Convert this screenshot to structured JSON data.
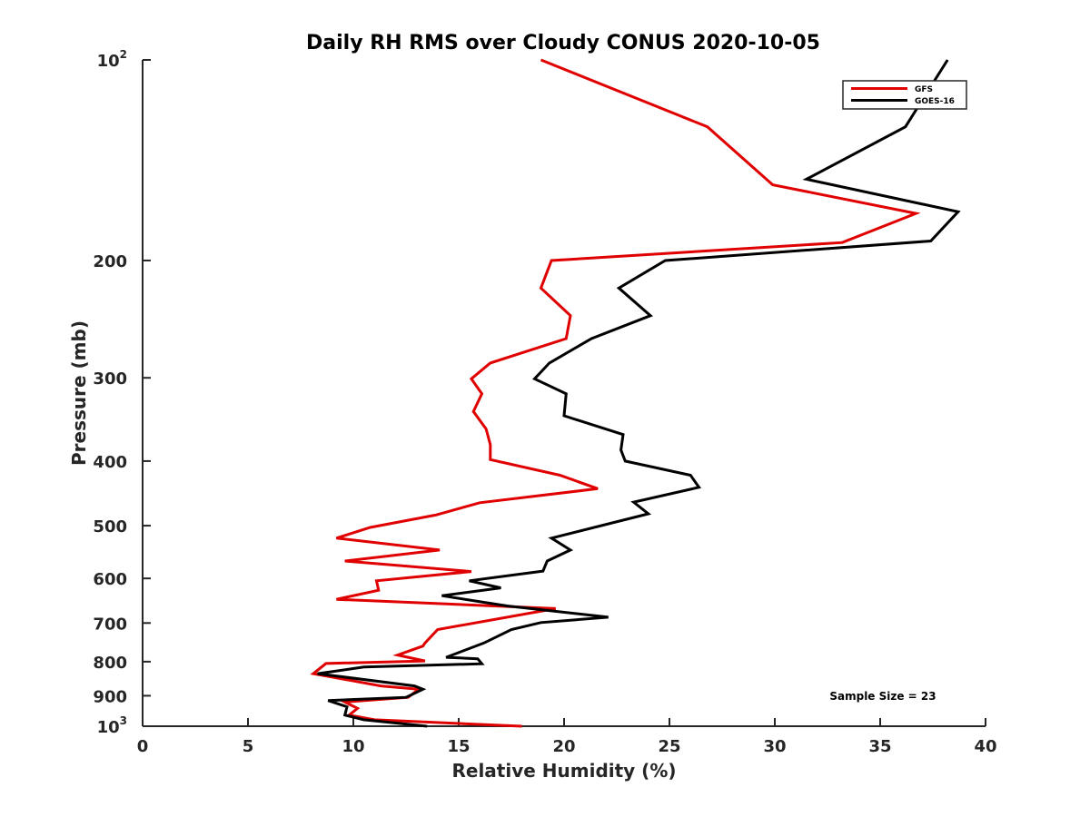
{
  "chart_data": {
    "type": "line",
    "title": "Daily RH RMS over Cloudy CONUS 2020-10-05",
    "xlabel": "Relative Humidity (%)",
    "ylabel": "Pressure (mb)",
    "xlim": [
      0,
      40
    ],
    "ylim": [
      100,
      1000
    ],
    "y_scale": "log",
    "y_reversed": true,
    "x_ticks": [
      0,
      5,
      10,
      15,
      20,
      25,
      30,
      35,
      40
    ],
    "y_ticks": [
      {
        "value": 100,
        "label": "10",
        "sup": "2"
      },
      {
        "value": 200,
        "label": "200",
        "sup": ""
      },
      {
        "value": 300,
        "label": "300",
        "sup": ""
      },
      {
        "value": 400,
        "label": "400",
        "sup": ""
      },
      {
        "value": 500,
        "label": "500",
        "sup": ""
      },
      {
        "value": 600,
        "label": "600",
        "sup": ""
      },
      {
        "value": 700,
        "label": "700",
        "sup": ""
      },
      {
        "value": 800,
        "label": "800",
        "sup": ""
      },
      {
        "value": 900,
        "label": "900",
        "sup": ""
      },
      {
        "value": 1000,
        "label": "10",
        "sup": "3"
      }
    ],
    "grid": false,
    "legend_position": "top-right",
    "annotation": "Sample Size = 23",
    "series": [
      {
        "name": "GFS",
        "color": "#e00000",
        "points": [
          [
            18.9,
            100
          ],
          [
            26.8,
            126
          ],
          [
            29.9,
            154
          ],
          [
            36.7,
            170
          ],
          [
            33.2,
            188
          ],
          [
            19.4,
            200
          ],
          [
            18.9,
            220
          ],
          [
            20.3,
            242
          ],
          [
            20.1,
            262
          ],
          [
            16.5,
            285
          ],
          [
            15.6,
            301
          ],
          [
            16.1,
            317
          ],
          [
            15.7,
            337
          ],
          [
            16.3,
            358
          ],
          [
            16.5,
            378
          ],
          [
            16.5,
            398
          ],
          [
            19.8,
            420
          ],
          [
            21.6,
            440
          ],
          [
            16.0,
            462
          ],
          [
            13.9,
            482
          ],
          [
            10.8,
            503
          ],
          [
            9.2,
            522
          ],
          [
            14.1,
            544
          ],
          [
            9.6,
            565
          ],
          [
            15.6,
            586
          ],
          [
            11.1,
            605
          ],
          [
            11.2,
            625
          ],
          [
            9.2,
            645
          ],
          [
            19.6,
            666
          ],
          [
            14.0,
            716
          ],
          [
            13.4,
            750
          ],
          [
            13.3,
            758
          ],
          [
            12.1,
            782
          ],
          [
            13.4,
            798
          ],
          [
            8.7,
            805
          ],
          [
            8.1,
            834
          ],
          [
            11.3,
            870
          ],
          [
            13.1,
            880
          ],
          [
            12.6,
            905
          ],
          [
            9.6,
            920
          ],
          [
            10.2,
            940
          ],
          [
            9.8,
            962
          ],
          [
            11.0,
            978
          ],
          [
            18.0,
            1000
          ]
        ]
      },
      {
        "name": "GOES-16",
        "color": "#000000",
        "points": [
          [
            38.2,
            100
          ],
          [
            36.2,
            126
          ],
          [
            31.5,
            151
          ],
          [
            38.7,
            169
          ],
          [
            37.4,
            187
          ],
          [
            24.8,
            200
          ],
          [
            22.6,
            220
          ],
          [
            24.1,
            242
          ],
          [
            21.3,
            262
          ],
          [
            19.3,
            285
          ],
          [
            18.6,
            301
          ],
          [
            20.1,
            317
          ],
          [
            20.0,
            342
          ],
          [
            22.8,
            365
          ],
          [
            22.7,
            385
          ],
          [
            22.9,
            400
          ],
          [
            26.0,
            420
          ],
          [
            26.4,
            438
          ],
          [
            23.3,
            461
          ],
          [
            24.0,
            480
          ],
          [
            19.4,
            522
          ],
          [
            20.3,
            544
          ],
          [
            19.2,
            565
          ],
          [
            19.0,
            585
          ],
          [
            15.5,
            605
          ],
          [
            17.0,
            620
          ],
          [
            14.2,
            637
          ],
          [
            17.3,
            660
          ],
          [
            22.1,
            686
          ],
          [
            18.9,
            699
          ],
          [
            17.5,
            716
          ],
          [
            16.2,
            750
          ],
          [
            14.4,
            788
          ],
          [
            15.9,
            792
          ],
          [
            16.1,
            806
          ],
          [
            10.5,
            815
          ],
          [
            8.3,
            834
          ],
          [
            12.9,
            870
          ],
          [
            13.3,
            880
          ],
          [
            12.5,
            905
          ],
          [
            8.8,
            915
          ],
          [
            9.7,
            935
          ],
          [
            9.6,
            962
          ],
          [
            10.5,
            978
          ],
          [
            13.5,
            1000
          ]
        ]
      }
    ]
  }
}
